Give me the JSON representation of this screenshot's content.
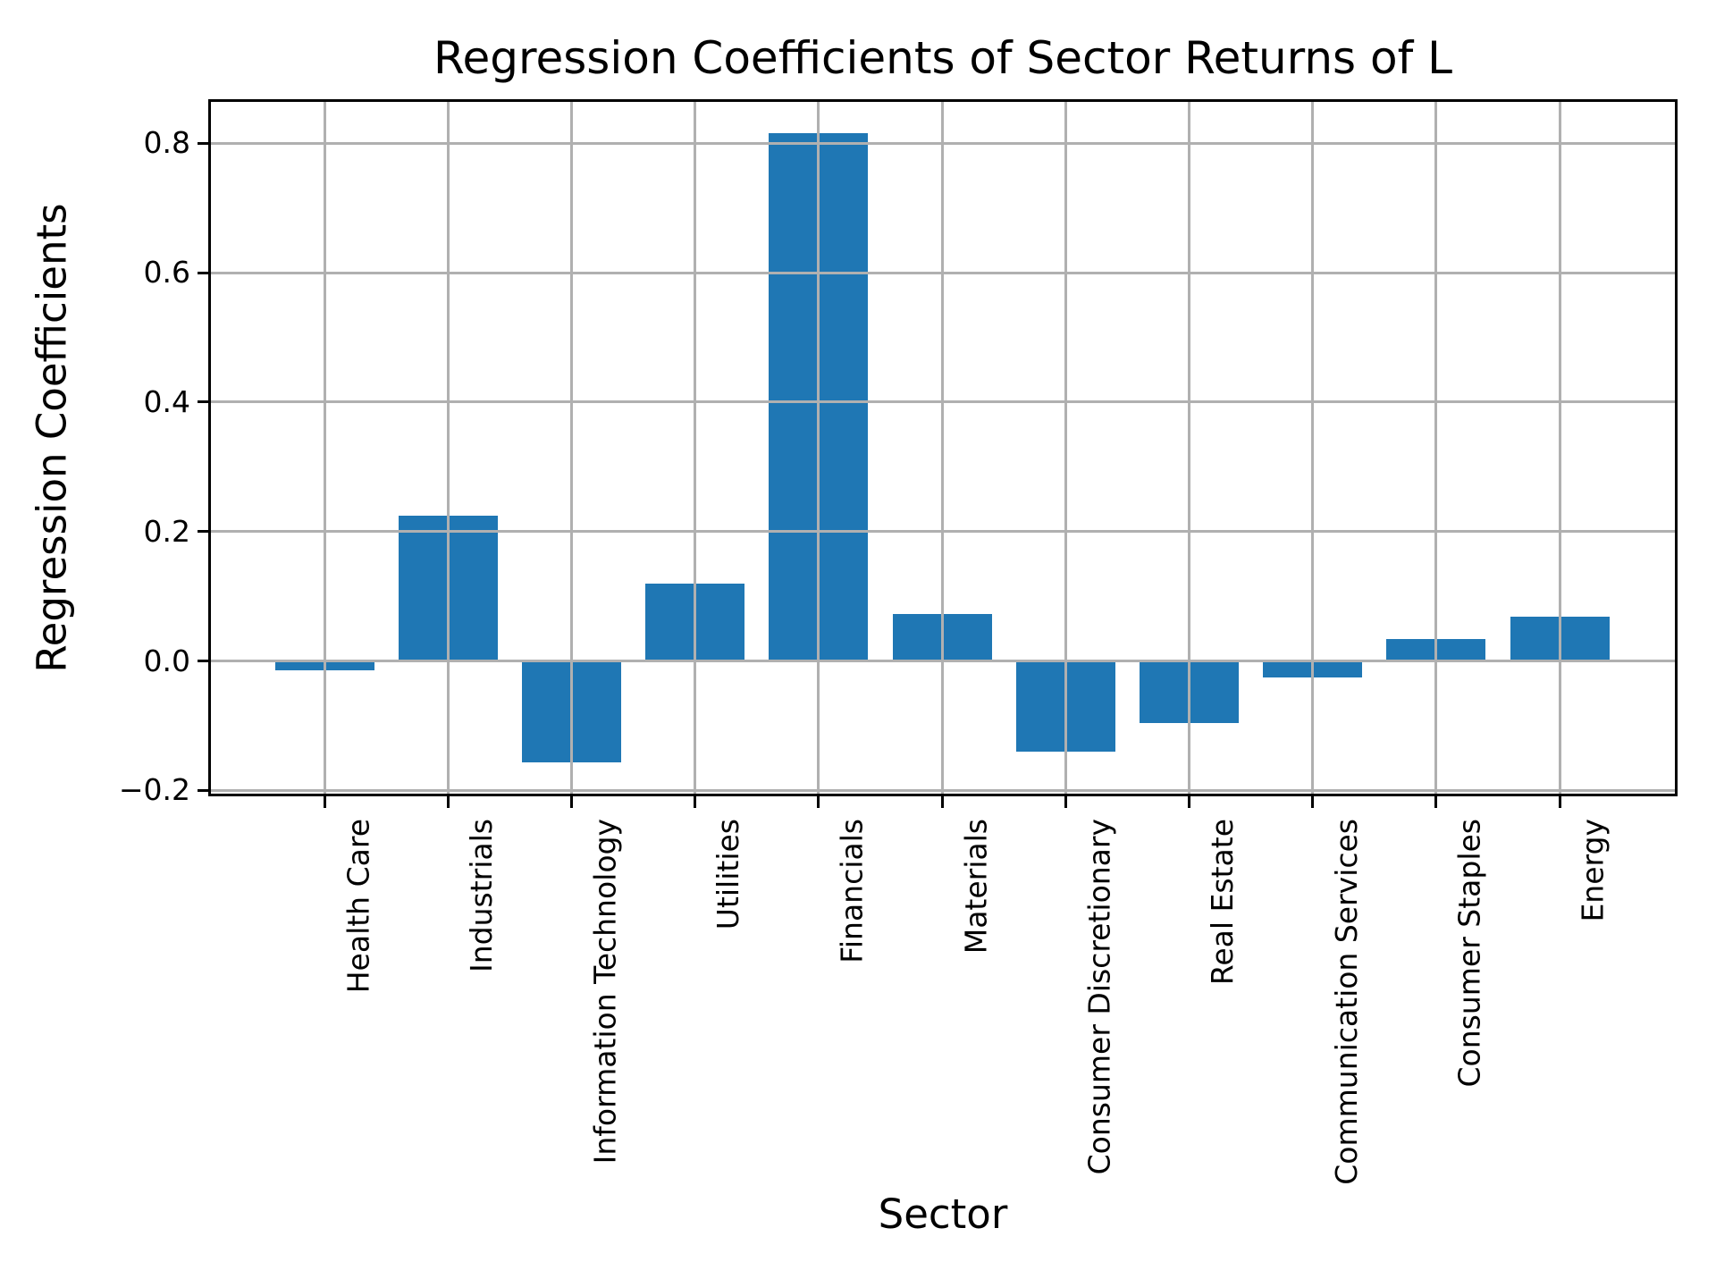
{
  "title": "Regression Coefficients of Sector Returns of L",
  "chart_data": {
    "type": "bar",
    "title": "Regression Coefficients of Sector Returns of L",
    "xlabel": "Sector",
    "ylabel": "Regression Coefficients",
    "categories": [
      "Health Care",
      "Industrials",
      "Information Technology",
      "Utilities",
      "Financials",
      "Materials",
      "Consumer Discretionary",
      "Real Estate",
      "Communication Services",
      "Consumer Staples",
      "Energy"
    ],
    "values": [
      -0.014,
      0.225,
      -0.156,
      0.119,
      0.815,
      0.073,
      -0.14,
      -0.096,
      -0.026,
      0.034,
      0.069
    ],
    "yticks": [
      -0.2,
      0.0,
      0.2,
      0.4,
      0.6,
      0.8
    ],
    "ytick_labels": [
      "−0.2",
      "0.0",
      "0.2",
      "0.4",
      "0.6",
      "0.8"
    ],
    "ylim": [
      -0.205,
      0.864
    ],
    "grid": true,
    "grid_on_top_of_bars": true,
    "legend_position": "none",
    "bar_color": "#1f77b4",
    "grid_color": "#b0b0b0",
    "axis_color": "#000000",
    "background_color": "#ffffff"
  }
}
